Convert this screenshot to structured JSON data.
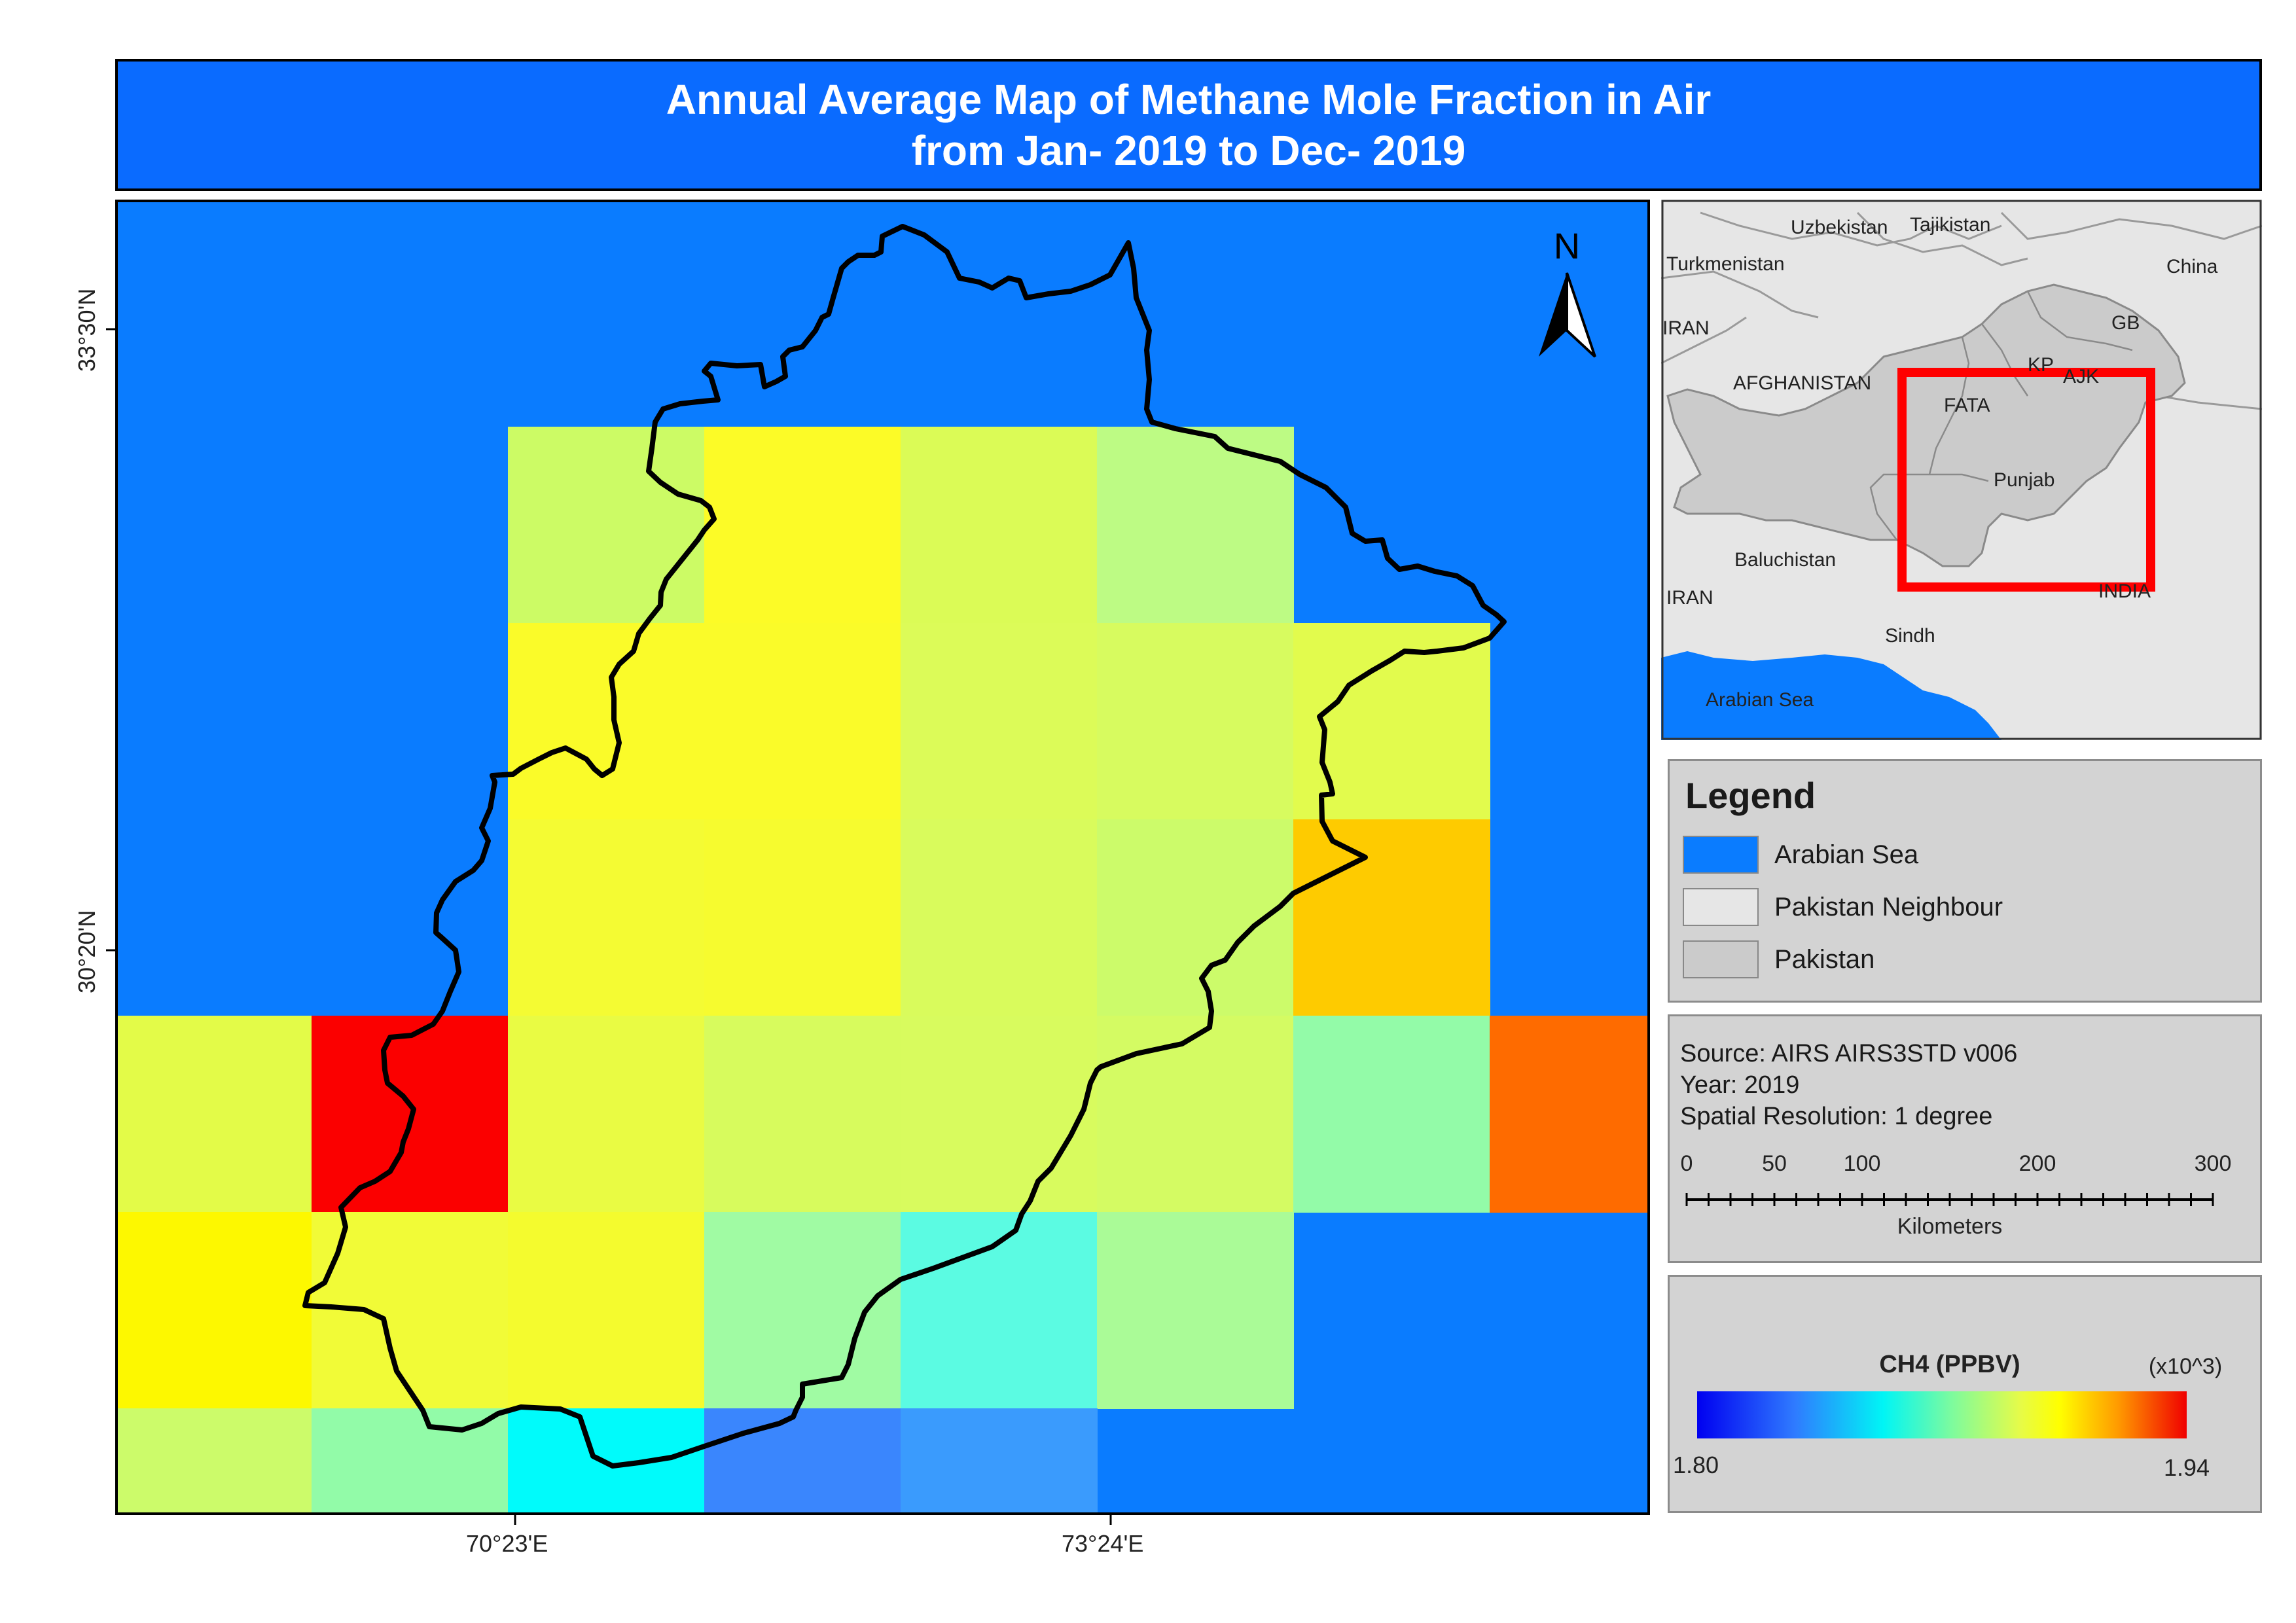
{
  "title": {
    "line1": "Annual Average Map of Methane Mole Fraction in Air",
    "line2": "from Jan- 2019 to Dec- 2019"
  },
  "main_map": {
    "north_label": "N",
    "y_ticks": [
      "33°30'N",
      "30°20'N"
    ],
    "x_ticks": [
      "70°23'E",
      "73°24'E"
    ],
    "grid_cells": [
      {
        "row": 0,
        "col": 2,
        "color": "#ccfb65"
      },
      {
        "row": 0,
        "col": 3,
        "color": "#fcfb27"
      },
      {
        "row": 0,
        "col": 4,
        "color": "#dbfb56"
      },
      {
        "row": 0,
        "col": 5,
        "color": "#bdfb84"
      },
      {
        "row": 1,
        "col": 2,
        "color": "#fafb29"
      },
      {
        "row": 1,
        "col": 3,
        "color": "#fafb29"
      },
      {
        "row": 1,
        "col": 4,
        "color": "#dcfb58"
      },
      {
        "row": 1,
        "col": 5,
        "color": "#d7fb5f"
      },
      {
        "row": 1,
        "col": 6,
        "color": "#e2fb4d"
      },
      {
        "row": 2,
        "col": 2,
        "color": "#f4fb33"
      },
      {
        "row": 2,
        "col": 3,
        "color": "#f6fb2f"
      },
      {
        "row": 2,
        "col": 4,
        "color": "#d9fb5c"
      },
      {
        "row": 2,
        "col": 5,
        "color": "#ccfb6a"
      },
      {
        "row": 2,
        "col": 6,
        "color": "#fecb00"
      },
      {
        "row": 3,
        "col": 0,
        "color": "#e3fb48"
      },
      {
        "row": 3,
        "col": 1,
        "color": "#fb0000"
      },
      {
        "row": 3,
        "col": 2,
        "color": "#e9fb43"
      },
      {
        "row": 3,
        "col": 3,
        "color": "#d7fb5d"
      },
      {
        "row": 3,
        "col": 4,
        "color": "#d8fb5e"
      },
      {
        "row": 3,
        "col": 5,
        "color": "#d4fb63"
      },
      {
        "row": 3,
        "col": 6,
        "color": "#93fba8"
      },
      {
        "row": 3,
        "col": 7,
        "color": "#fe6b00"
      },
      {
        "row": 4,
        "col": 0,
        "color": "#fdf800"
      },
      {
        "row": 4,
        "col": 1,
        "color": "#f1fb37"
      },
      {
        "row": 4,
        "col": 2,
        "color": "#f4fb2e"
      },
      {
        "row": 4,
        "col": 3,
        "color": "#a0fba3"
      },
      {
        "row": 4,
        "col": 4,
        "color": "#5bfbe2"
      },
      {
        "row": 4,
        "col": 5,
        "color": "#aafb97"
      },
      {
        "row": 5,
        "col": 0,
        "color": "#ccfb6a"
      },
      {
        "row": 5,
        "col": 1,
        "color": "#92fba8"
      },
      {
        "row": 5,
        "col": 2,
        "color": "#00fbfb"
      },
      {
        "row": 5,
        "col": 3,
        "color": "#3a86fd"
      },
      {
        "row": 5,
        "col": 4,
        "color": "#3a9bfd"
      }
    ]
  },
  "inset_map": {
    "labels": {
      "uzbekistan": "Uzbekistan",
      "tajikistan": "Tajikistan",
      "turkmenistan": "Turkmenistan",
      "china": "China",
      "iran_north": "IRAN",
      "gb": "GB",
      "afghanistan": "AFGHANISTAN",
      "kp": "KP",
      "ajk": "AJK",
      "fata": "FATA",
      "punjab": "Punjab",
      "baluchistan": "Baluchistan",
      "iran_south": "IRAN",
      "india": "INDIA",
      "sindh": "Sindh",
      "arabian_sea": "Arabian Sea"
    }
  },
  "legend": {
    "title": "Legend",
    "items": [
      {
        "label": "Arabian Sea",
        "color": "#0a7cff"
      },
      {
        "label": "Pakistan Neighbour",
        "color": "#e6e6e6"
      },
      {
        "label": "Pakistan",
        "color": "#cbcbcb"
      }
    ]
  },
  "source": {
    "line1": "Source: AIRS AIRS3STD v006",
    "line2": "Year: 2019",
    "line3": "Spatial Resolution: 1 degree"
  },
  "scale_bar": {
    "labels": [
      "0",
      "50",
      "100",
      "200",
      "300"
    ],
    "unit": "Kilometers"
  },
  "colorbar": {
    "title": "CH4 (PPBV)",
    "multiplier": "(x10^3)",
    "min": "1.80",
    "max": "1.94"
  },
  "colors": {
    "sea": "#0a7cff",
    "title_bar": "#0a6bff",
    "neighbour": "#e6e6e6",
    "pakistan": "#cbcbcb",
    "study_area_box": "#ff0000"
  }
}
